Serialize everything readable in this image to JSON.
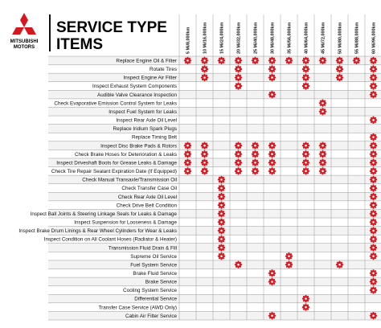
{
  "header": {
    "brand": [
      "MITSUBISHI",
      "MOTORS"
    ],
    "title": [
      "SERVICE TYPE",
      "ITEMS"
    ]
  },
  "table": {
    "columns": [
      "5 Mi/8,000km",
      "10 Mi/16,000km",
      "15 Mi/24,000km",
      "20 Mi/32,000km",
      "25 Mi/40,000km",
      "30 Mi/48,000km",
      "35 Mi/56,000km",
      "40 Mi/64,000km",
      "45 Mi/72,000km",
      "50 Mi/80,000km",
      "55 Mi/88,000km",
      "60 Mi/96,000km"
    ],
    "rows": [
      {
        "label": "Replace Engine Oil & Filter",
        "checks": [
          true,
          true,
          true,
          true,
          true,
          true,
          true,
          true,
          true,
          true,
          true,
          true
        ]
      },
      {
        "label": "Rotate Tires",
        "checks": [
          false,
          true,
          false,
          true,
          false,
          true,
          false,
          true,
          false,
          true,
          false,
          true
        ]
      },
      {
        "label": "Inspect Engine Air Filter",
        "checks": [
          false,
          true,
          false,
          true,
          false,
          true,
          false,
          true,
          false,
          true,
          false,
          true
        ]
      },
      {
        "label": "Inspect Exhaust System Components",
        "checks": [
          false,
          false,
          false,
          true,
          false,
          false,
          false,
          true,
          false,
          false,
          false,
          true
        ]
      },
      {
        "label": "Audible Valve Clearance Inspection",
        "checks": [
          false,
          false,
          false,
          false,
          false,
          true,
          false,
          false,
          false,
          false,
          false,
          true
        ]
      },
      {
        "label": "Check Evaporative Emission Control System for Leaks",
        "checks": [
          false,
          false,
          false,
          false,
          false,
          false,
          false,
          false,
          true,
          false,
          false,
          false
        ]
      },
      {
        "label": "Inspect Fuel System for Leaks",
        "checks": [
          false,
          false,
          false,
          false,
          false,
          false,
          false,
          false,
          true,
          false,
          false,
          false
        ]
      },
      {
        "label": "Inspect Rear Axle Oil Level",
        "checks": [
          false,
          false,
          false,
          false,
          false,
          false,
          false,
          false,
          false,
          false,
          false,
          true
        ]
      },
      {
        "label": "Replace Iridium Spark Plugs",
        "checks": [
          false,
          false,
          false,
          false,
          false,
          false,
          false,
          false,
          false,
          false,
          false,
          false
        ]
      },
      {
        "label": "Replace Timing Belt",
        "checks": [
          false,
          false,
          false,
          false,
          false,
          false,
          false,
          false,
          false,
          false,
          false,
          true
        ]
      },
      {
        "label": "Inspect Disc Brake Pads & Rotors",
        "checks": [
          true,
          true,
          false,
          true,
          true,
          true,
          false,
          true,
          true,
          false,
          false,
          true
        ]
      },
      {
        "label": "Check Brake Hoses for Deterioration & Leaks",
        "checks": [
          true,
          true,
          false,
          true,
          true,
          true,
          false,
          true,
          true,
          false,
          false,
          true
        ]
      },
      {
        "label": "Inspect Driveshaft Boots for Grease Leaks & Damage",
        "checks": [
          true,
          true,
          false,
          true,
          true,
          true,
          false,
          true,
          true,
          false,
          false,
          true
        ]
      },
      {
        "label": "Check Tire Repair Sealant Expiration Date (If Equipped)",
        "checks": [
          true,
          true,
          false,
          true,
          true,
          true,
          false,
          true,
          true,
          false,
          false,
          true
        ]
      },
      {
        "label": "Check Manual Transaxle/Transmission Oil",
        "checks": [
          false,
          false,
          true,
          false,
          false,
          false,
          false,
          false,
          false,
          false,
          false,
          true
        ]
      },
      {
        "label": "Check Transfer Case Oil",
        "checks": [
          false,
          false,
          true,
          false,
          false,
          false,
          false,
          false,
          false,
          false,
          false,
          true
        ]
      },
      {
        "label": "Check Rear Axle Oil Level",
        "checks": [
          false,
          false,
          true,
          false,
          false,
          false,
          false,
          false,
          false,
          false,
          false,
          true
        ]
      },
      {
        "label": "Check Drive Belt Condition",
        "checks": [
          false,
          false,
          true,
          false,
          false,
          false,
          false,
          false,
          false,
          false,
          false,
          true
        ]
      },
      {
        "label": "Inspect Ball Joints & Steering Linkage Seals for Leaks & Damage",
        "checks": [
          false,
          false,
          true,
          false,
          false,
          false,
          false,
          false,
          false,
          false,
          false,
          true
        ]
      },
      {
        "label": "Inspect Suspension for Looseness & Damage",
        "checks": [
          false,
          false,
          true,
          false,
          false,
          false,
          false,
          false,
          false,
          false,
          false,
          true
        ]
      },
      {
        "label": "Inspect Brake Drum Linings & Rear Wheel Cylinders for Wear & Leaks",
        "checks": [
          false,
          false,
          true,
          false,
          false,
          false,
          false,
          false,
          false,
          false,
          false,
          true
        ]
      },
      {
        "label": "Inspect Condition on All Coolant Hoses (Radiator & Heater)",
        "checks": [
          false,
          false,
          true,
          false,
          false,
          false,
          false,
          false,
          false,
          false,
          false,
          true
        ]
      },
      {
        "label": "Transmission Fluid Drain & Fill",
        "checks": [
          false,
          false,
          true,
          false,
          false,
          false,
          false,
          false,
          false,
          false,
          false,
          true
        ]
      },
      {
        "label": "Supreme Oil Service",
        "checks": [
          false,
          false,
          true,
          false,
          false,
          false,
          true,
          false,
          false,
          false,
          false,
          true
        ]
      },
      {
        "label": "Fuel System Service",
        "checks": [
          false,
          false,
          false,
          true,
          false,
          false,
          true,
          false,
          false,
          true,
          false,
          false
        ]
      },
      {
        "label": "Brake Fluid Service",
        "checks": [
          false,
          false,
          false,
          false,
          false,
          true,
          false,
          false,
          false,
          false,
          false,
          true
        ]
      },
      {
        "label": "Brake Service",
        "checks": [
          false,
          false,
          false,
          false,
          false,
          true,
          false,
          false,
          false,
          false,
          false,
          true
        ]
      },
      {
        "label": "Cooling System Service",
        "checks": [
          false,
          false,
          false,
          false,
          false,
          false,
          false,
          false,
          false,
          false,
          false,
          true
        ]
      },
      {
        "label": "Differential Service",
        "checks": [
          false,
          false,
          false,
          false,
          false,
          false,
          false,
          true,
          false,
          false,
          false,
          false
        ]
      },
      {
        "label": "Transfer Case Service (AWD Only)",
        "checks": [
          false,
          false,
          false,
          false,
          false,
          false,
          false,
          true,
          false,
          false,
          false,
          false
        ]
      },
      {
        "label": "Cabin Air Filter Service",
        "checks": [
          false,
          false,
          false,
          false,
          false,
          true,
          false,
          false,
          false,
          false,
          false,
          true
        ]
      }
    ]
  }
}
